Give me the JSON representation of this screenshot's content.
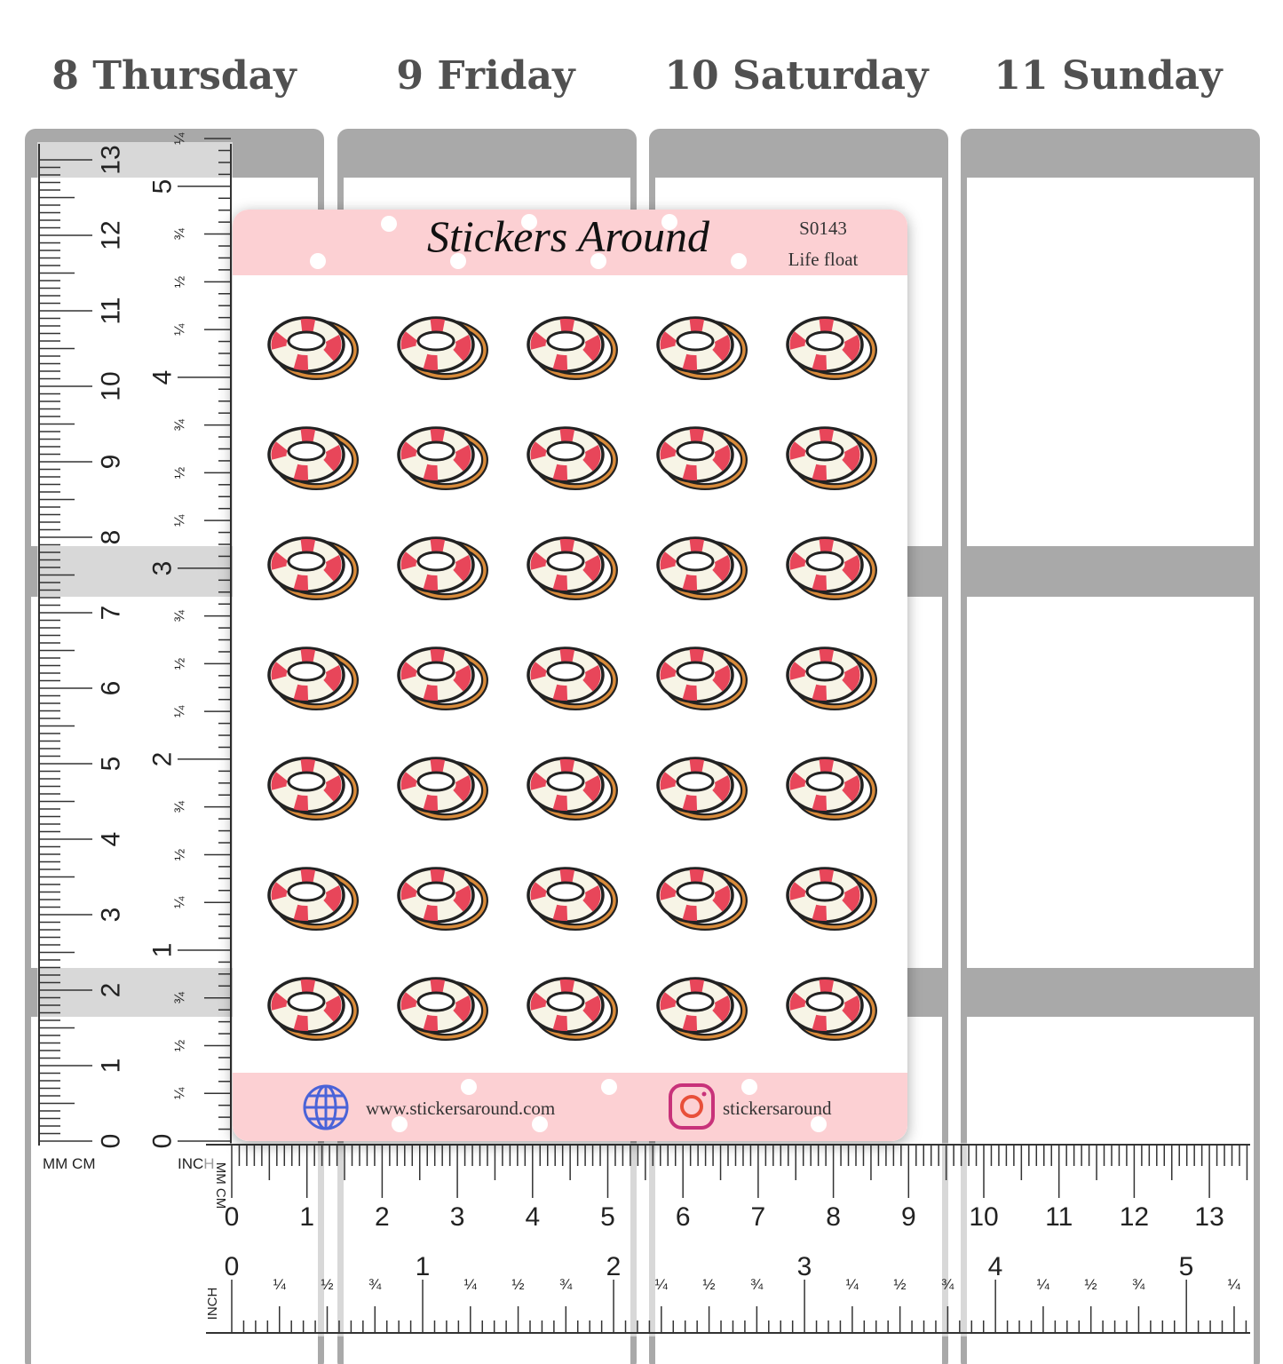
{
  "days": [
    "8 Thursday",
    "9 Friday",
    "10 Saturday",
    "11 Sunday"
  ],
  "sheet": {
    "brand": "Stickers Around",
    "code": "S0143",
    "name": "Life float",
    "website": "www.stickersaround.com",
    "instagram": "stickersaround"
  },
  "vertical_ruler": {
    "units": [
      "MM CM",
      "INCH"
    ],
    "cm": [
      "0",
      "1",
      "2",
      "3",
      "4",
      "5",
      "6",
      "7",
      "8",
      "9",
      "10",
      "11",
      "12",
      "13"
    ],
    "inch": [
      "0",
      "¼",
      "½",
      "¾",
      "1",
      "¼",
      "½",
      "¾",
      "2",
      "¼",
      "½",
      "¾",
      "3",
      "¼",
      "½",
      "¾",
      "4",
      "¼",
      "½",
      "¾",
      "5",
      "¼"
    ]
  },
  "horizontal_ruler": {
    "units": [
      "MM CM",
      "INCH"
    ],
    "cm": [
      "0",
      "1",
      "2",
      "3",
      "4",
      "5",
      "6",
      "7",
      "8",
      "9",
      "10",
      "11",
      "12",
      "13"
    ],
    "inch": [
      "0",
      "¼",
      "½",
      "¾",
      "1",
      "¼",
      "½",
      "¾",
      "2",
      "¼",
      "½",
      "¾",
      "3",
      "¼",
      "½",
      "¾",
      "4",
      "¼",
      "½",
      "¾",
      "5",
      "¼"
    ]
  }
}
